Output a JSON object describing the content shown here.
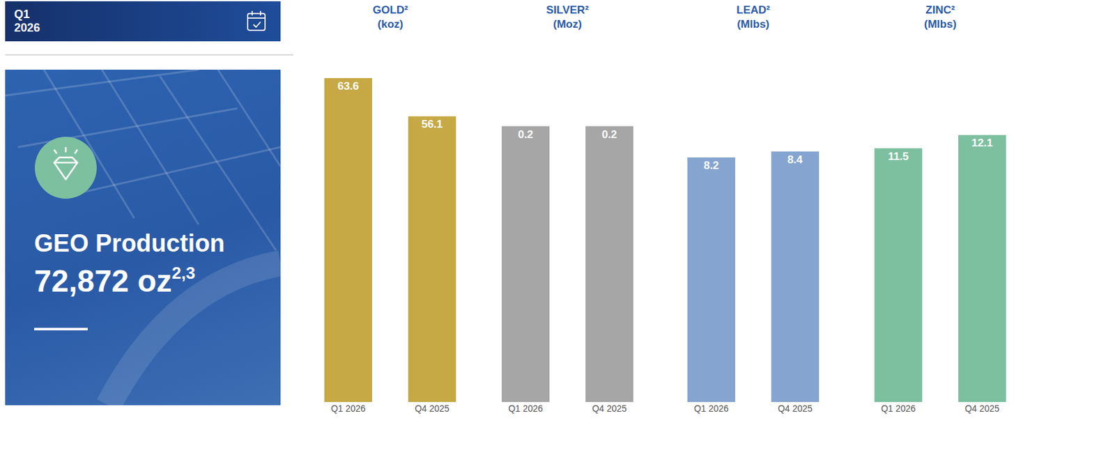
{
  "header": {
    "period": [
      "Q1",
      "2026"
    ]
  },
  "summary": {
    "label": "GEO Production",
    "value": "72,872 oz",
    "footnote": "2,3"
  },
  "chart_data": [
    {
      "type": "bar",
      "title": "GOLD²",
      "subtitle": "(koz)",
      "categories": [
        "Q1 2026",
        "Q4 2025"
      ],
      "values": [
        63.6,
        56.1
      ],
      "color": "#c6a945",
      "ylim": [
        0,
        65
      ],
      "data_labels": true,
      "tick_labels": "x",
      "grid": false
    },
    {
      "type": "bar",
      "title": "SILVER²",
      "subtitle": "(Moz)",
      "categories": [
        "Q1 2026",
        "Q4 2025"
      ],
      "values": [
        0.2,
        0.2
      ],
      "color": "#a6a6a6",
      "ylim": [
        0,
        0.24
      ],
      "data_labels": true,
      "tick_labels": "x",
      "grid": false
    },
    {
      "type": "bar",
      "title": "LEAD²",
      "subtitle": "(Mlbs)",
      "categories": [
        "Q1 2026",
        "Q4 2025"
      ],
      "values": [
        8.2,
        8.4
      ],
      "color": "#85a5d0",
      "ylim": [
        0,
        11.1
      ],
      "data_labels": true,
      "tick_labels": "x",
      "grid": false
    },
    {
      "type": "bar",
      "title": "ZINC²",
      "subtitle": "(Mlbs)",
      "categories": [
        "Q1 2026",
        "Q4 2025"
      ],
      "values": [
        11.5,
        12.1
      ],
      "color": "#7dc0a0",
      "ylim": [
        0,
        15
      ],
      "data_labels": true,
      "tick_labels": "x",
      "grid": false
    }
  ]
}
